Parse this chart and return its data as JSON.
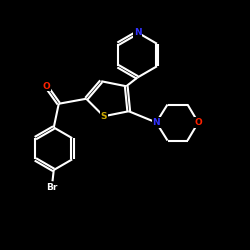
{
  "background": "#000000",
  "bond_color": "#ffffff",
  "bond_width": 1.5,
  "atom_colors": {
    "N": "#3333ff",
    "O": "#ff2200",
    "S": "#ccaa00",
    "Br": "#ffffff",
    "C": "#ffffff"
  },
  "fig_size": [
    2.5,
    2.5
  ],
  "dpi": 100,
  "xlim": [
    0,
    10
  ],
  "ylim": [
    0,
    10
  ]
}
